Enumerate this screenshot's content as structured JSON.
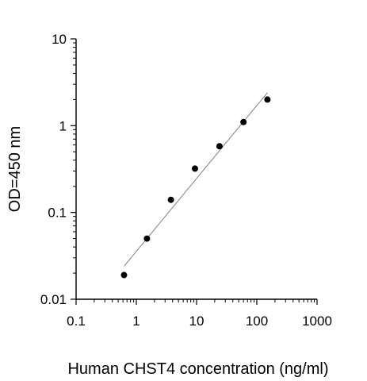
{
  "chart_data": {
    "type": "scatter",
    "title": "",
    "xlabel": "Human CHST4 concentration (ng/ml)",
    "ylabel": "OD=450 nm",
    "x_scale": "log",
    "y_scale": "log",
    "xlim": [
      0.1,
      1000
    ],
    "ylim": [
      0.01,
      10
    ],
    "x_ticks": [
      0.1,
      1,
      10,
      100,
      1000
    ],
    "y_ticks": [
      0.01,
      0.1,
      1,
      10
    ],
    "x_tick_labels": [
      "0.1",
      "1",
      "10",
      "100",
      "1000"
    ],
    "y_tick_labels": [
      "0.01",
      "0.1",
      "1",
      "10"
    ],
    "grid": false,
    "legend": "none",
    "series": [
      {
        "x": [
          0.625,
          1.5,
          3.75,
          9.4,
          24,
          60,
          150
        ],
        "y": [
          0.019,
          0.05,
          0.14,
          0.32,
          0.58,
          1.1,
          2.0
        ],
        "color": "#000000"
      }
    ],
    "fit_line": {
      "x": [
        0.625,
        150
      ],
      "y": [
        0.024,
        2.4
      ],
      "color": "#808080"
    }
  }
}
